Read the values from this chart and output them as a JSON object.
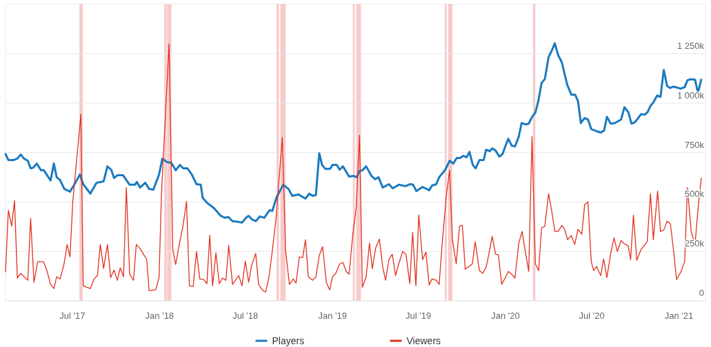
{
  "chart_data": {
    "type": "line",
    "legend": "bottom",
    "grid": "y",
    "xlim": [
      "2017-02-10",
      "2021-02-26"
    ],
    "ylim": [
      0,
      1500
    ],
    "xticks": [
      {
        "value": "2017-07-01",
        "label": "Jul '17"
      },
      {
        "value": "2018-01-01",
        "label": "Jan '18"
      },
      {
        "value": "2018-07-01",
        "label": "Jul '18"
      },
      {
        "value": "2019-01-01",
        "label": "Jan '19"
      },
      {
        "value": "2019-07-01",
        "label": "Jul '19"
      },
      {
        "value": "2020-01-01",
        "label": "Jan '20"
      },
      {
        "value": "2020-07-01",
        "label": "Jul '20"
      },
      {
        "value": "2021-01-01",
        "label": "Jan '21"
      }
    ],
    "yticks": [
      0,
      {
        "value": 250,
        "label": "250k"
      },
      {
        "value": 500,
        "label": "500k"
      },
      {
        "value": 750,
        "label": "750k"
      },
      {
        "value": 1000,
        "label": "1 000k"
      },
      {
        "value": 1250,
        "label": "1 250k"
      }
    ],
    "bands": [
      {
        "axis": "x",
        "from": "2017-07-16",
        "to": "2017-07-23",
        "color": "#f7c4c4"
      },
      {
        "axis": "x",
        "from": "2018-01-11",
        "to": "2018-01-16",
        "color": "#f7c4c4"
      },
      {
        "axis": "x",
        "from": "2018-01-17",
        "to": "2018-01-26",
        "color": "#f7c4c4"
      },
      {
        "axis": "x",
        "from": "2018-09-05",
        "to": "2018-09-10",
        "color": "#f7c4c4"
      },
      {
        "axis": "x",
        "from": "2018-09-13",
        "to": "2018-09-24",
        "color": "#f7c4c4"
      },
      {
        "axis": "x",
        "from": "2019-02-13",
        "to": "2019-02-17",
        "color": "#f7c4c4"
      },
      {
        "axis": "x",
        "from": "2019-02-20",
        "to": "2019-03-02",
        "color": "#f7c4c4"
      },
      {
        "axis": "x",
        "from": "2019-08-26",
        "to": "2019-08-30",
        "color": "#f7c4c4"
      },
      {
        "axis": "x",
        "from": "2019-09-02",
        "to": "2019-09-11",
        "color": "#f7c4c4"
      },
      {
        "axis": "x",
        "from": "2020-02-28",
        "to": "2020-03-04",
        "color": "#f7c4c4"
      }
    ],
    "series": [
      {
        "name": "Players",
        "color": "#1a7abf",
        "x": [
          "2017-02-10",
          "2017-02-16",
          "2017-02-27",
          "2017-03-07",
          "2017-03-14",
          "2017-03-21",
          "2017-03-29",
          "2017-04-04",
          "2017-04-10",
          "2017-04-17",
          "2017-04-26",
          "2017-05-02",
          "2017-05-16",
          "2017-05-23",
          "2017-05-29",
          "2017-06-05",
          "2017-06-14",
          "2017-06-26",
          "2017-07-05",
          "2017-07-17",
          "2017-07-24",
          "2017-08-08",
          "2017-08-21",
          "2017-09-05",
          "2017-09-13",
          "2017-09-21",
          "2017-09-27",
          "2017-10-04",
          "2017-10-16",
          "2017-10-30",
          "2017-11-10",
          "2017-11-14",
          "2017-11-21",
          "2017-12-02",
          "2017-12-10",
          "2017-12-19",
          "2017-12-31",
          "2018-01-07",
          "2018-01-17",
          "2018-01-26",
          "2018-02-04",
          "2018-02-13",
          "2018-02-20",
          "2018-03-01",
          "2018-03-10",
          "2018-03-20",
          "2018-03-29",
          "2018-04-02",
          "2018-04-11",
          "2018-04-26",
          "2018-05-10",
          "2018-05-19",
          "2018-05-26",
          "2018-06-04",
          "2018-06-17",
          "2018-06-24",
          "2018-07-04",
          "2018-07-08",
          "2018-07-16",
          "2018-07-23",
          "2018-08-01",
          "2018-08-10",
          "2018-08-21",
          "2018-08-27",
          "2018-09-05",
          "2018-09-19",
          "2018-09-30",
          "2018-10-08",
          "2018-10-21",
          "2018-11-05",
          "2018-11-13",
          "2018-11-20",
          "2018-11-27",
          "2018-12-04",
          "2018-12-10",
          "2018-12-17",
          "2018-12-27",
          "2019-01-01",
          "2019-01-10",
          "2019-01-16",
          "2019-01-23",
          "2019-02-05",
          "2019-02-14",
          "2019-02-21",
          "2019-02-27",
          "2019-03-05",
          "2019-03-13",
          "2019-03-24",
          "2019-04-01",
          "2019-04-08",
          "2019-04-17",
          "2019-04-30",
          "2019-05-08",
          "2019-05-21",
          "2019-06-04",
          "2019-06-14",
          "2019-06-20",
          "2019-06-27",
          "2019-07-10",
          "2019-07-24",
          "2019-07-30",
          "2019-08-08",
          "2019-08-14",
          "2019-08-27",
          "2019-09-05",
          "2019-09-13",
          "2019-09-20",
          "2019-09-27",
          "2019-10-04",
          "2019-10-11",
          "2019-10-17",
          "2019-10-24",
          "2019-10-30",
          "2019-11-07",
          "2019-11-16",
          "2019-11-21",
          "2019-11-29",
          "2019-12-04",
          "2019-12-11",
          "2019-12-19",
          "2019-12-26",
          "2019-12-31",
          "2020-01-07",
          "2020-01-14",
          "2020-01-21",
          "2020-01-29",
          "2020-02-04",
          "2020-02-13",
          "2020-02-19",
          "2020-02-27",
          "2020-03-04",
          "2020-03-10",
          "2020-03-17",
          "2020-03-24",
          "2020-04-01",
          "2020-04-08",
          "2020-04-14",
          "2020-04-21",
          "2020-04-29",
          "2020-05-10",
          "2020-05-19",
          "2020-05-27",
          "2020-06-02",
          "2020-06-08",
          "2020-06-16",
          "2020-06-23",
          "2020-06-30",
          "2020-07-11",
          "2020-07-20",
          "2020-07-27",
          "2020-08-02",
          "2020-08-10",
          "2020-08-19",
          "2020-09-01",
          "2020-09-08",
          "2020-09-16",
          "2020-09-23",
          "2020-09-30",
          "2020-10-07",
          "2020-10-13",
          "2020-10-21",
          "2020-10-27",
          "2020-11-02",
          "2020-11-08",
          "2020-11-16",
          "2020-11-23",
          "2020-11-30",
          "2020-12-07",
          "2020-12-13",
          "2020-12-20",
          "2021-01-05",
          "2021-01-13",
          "2021-01-19",
          "2021-01-26",
          "2021-02-04",
          "2021-02-10",
          "2021-02-17"
        ],
        "values": [
          743,
          712,
          712,
          719,
          740,
          719,
          708,
          670,
          674,
          694,
          660,
          660,
          608,
          694,
          625,
          611,
          566,
          552,
          587,
          639,
          590,
          542,
          597,
          604,
          680,
          663,
          621,
          635,
          635,
          587,
          587,
          601,
          573,
          597,
          566,
          562,
          639,
          719,
          701,
          698,
          660,
          687,
          670,
          670,
          639,
          590,
          587,
          521,
          496,
          469,
          430,
          420,
          424,
          403,
          399,
          396,
          424,
          430,
          410,
          403,
          427,
          420,
          458,
          455,
          524,
          587,
          566,
          531,
          538,
          517,
          542,
          531,
          535,
          746,
          687,
          667,
          667,
          687,
          687,
          663,
          680,
          628,
          632,
          625,
          656,
          660,
          680,
          632,
          615,
          625,
          573,
          590,
          569,
          587,
          580,
          590,
          587,
          555,
          576,
          559,
          583,
          590,
          625,
          663,
          708,
          694,
          722,
          722,
          733,
          726,
          753,
          687,
          670,
          712,
          712,
          764,
          757,
          771,
          760,
          729,
          743,
          778,
          819,
          785,
          781,
          830,
          899,
          892,
          896,
          934,
          951,
          1007,
          1101,
          1121,
          1233,
          1267,
          1302,
          1243,
          1205,
          1094,
          1042,
          1042,
          1010,
          899,
          924,
          917,
          868,
          858,
          851,
          861,
          930,
          896,
          899,
          917,
          979,
          955,
          896,
          903,
          924,
          944,
          941,
          955,
          986,
          1003,
          1038,
          1031,
          1167,
          1087,
          1076,
          1083,
          1073,
          1080,
          1115,
          1121,
          1118,
          1052,
          1118
        ]
      },
      {
        "name": "Viewers",
        "color": "#e0301e",
        "x": [
          "2017-02-10",
          "2017-02-16",
          "2017-02-23",
          "2017-03-01",
          "2017-03-07",
          "2017-03-14",
          "2017-03-29",
          "2017-04-04",
          "2017-04-11",
          "2017-04-19",
          "2017-05-01",
          "2017-05-08",
          "2017-05-16",
          "2017-05-23",
          "2017-05-29",
          "2017-06-05",
          "2017-06-13",
          "2017-06-20",
          "2017-06-26",
          "2017-07-02",
          "2017-07-19",
          "2017-07-24",
          "2017-08-08",
          "2017-08-16",
          "2017-08-23",
          "2017-08-29",
          "2017-09-05",
          "2017-09-13",
          "2017-09-20",
          "2017-09-27",
          "2017-10-04",
          "2017-10-10",
          "2017-10-17",
          "2017-10-23",
          "2017-10-30",
          "2017-11-07",
          "2017-11-13",
          "2017-11-21",
          "2017-11-29",
          "2017-12-05",
          "2017-12-10",
          "2017-12-24",
          "2017-12-31",
          "2018-01-05",
          "2018-01-21",
          "2018-01-29",
          "2018-02-04",
          "2018-02-13",
          "2018-02-19",
          "2018-02-27",
          "2018-03-05",
          "2018-03-13",
          "2018-03-20",
          "2018-03-27",
          "2018-04-04",
          "2018-04-11",
          "2018-04-17",
          "2018-04-23",
          "2018-04-30",
          "2018-05-07",
          "2018-05-14",
          "2018-05-21",
          "2018-05-27",
          "2018-06-04",
          "2018-06-17",
          "2018-06-24",
          "2018-07-01",
          "2018-07-08",
          "2018-07-14",
          "2018-07-23",
          "2018-07-29",
          "2018-08-07",
          "2018-08-13",
          "2018-08-20",
          "2018-08-27",
          "2018-09-04",
          "2018-09-17",
          "2018-09-24",
          "2018-10-02",
          "2018-10-10",
          "2018-10-16",
          "2018-10-23",
          "2018-10-30",
          "2018-11-05",
          "2018-11-11",
          "2018-11-20",
          "2018-11-27",
          "2018-12-04",
          "2018-12-11",
          "2018-12-19",
          "2018-12-26",
          "2019-01-01",
          "2019-01-08",
          "2019-01-16",
          "2019-01-23",
          "2019-01-30",
          "2019-02-05",
          "2019-02-13",
          "2019-02-20",
          "2019-02-27",
          "2019-03-05",
          "2019-03-13",
          "2019-03-20",
          "2019-03-26",
          "2019-04-02",
          "2019-04-10",
          "2019-04-17",
          "2019-04-23",
          "2019-04-30",
          "2019-05-07",
          "2019-05-14",
          "2019-05-20",
          "2019-05-29",
          "2019-06-05",
          "2019-06-13",
          "2019-06-19",
          "2019-06-26",
          "2019-07-02",
          "2019-07-10",
          "2019-07-17",
          "2019-07-24",
          "2019-07-30",
          "2019-08-08",
          "2019-08-14",
          "2019-08-21",
          "2019-08-29",
          "2019-09-05",
          "2019-09-11",
          "2019-09-19",
          "2019-09-26",
          "2019-10-02",
          "2019-10-08",
          "2019-10-16",
          "2019-10-23",
          "2019-10-29",
          "2019-11-07",
          "2019-11-14",
          "2019-11-21",
          "2019-11-26",
          "2019-12-04",
          "2019-12-11",
          "2019-12-17",
          "2019-12-24",
          "2019-12-31",
          "2020-01-07",
          "2020-01-14",
          "2020-01-21",
          "2020-01-29",
          "2020-02-05",
          "2020-02-13",
          "2020-02-19",
          "2020-02-26",
          "2020-03-04",
          "2020-03-11",
          "2020-03-17",
          "2020-03-24",
          "2020-04-01",
          "2020-04-08",
          "2020-04-14",
          "2020-04-21",
          "2020-04-29",
          "2020-05-05",
          "2020-05-11",
          "2020-05-19",
          "2020-05-26",
          "2020-06-02",
          "2020-06-10",
          "2020-06-16",
          "2020-06-23",
          "2020-06-30",
          "2020-07-05",
          "2020-07-11",
          "2020-07-20",
          "2020-07-26",
          "2020-08-02",
          "2020-08-10",
          "2020-08-17",
          "2020-08-24",
          "2020-09-01",
          "2020-09-08",
          "2020-09-16",
          "2020-09-21",
          "2020-09-27",
          "2020-10-04",
          "2020-10-13",
          "2020-10-19",
          "2020-10-26",
          "2020-11-02",
          "2020-11-08",
          "2020-11-17",
          "2020-11-23",
          "2020-11-30",
          "2020-12-07",
          "2020-12-14",
          "2020-12-20",
          "2020-12-27",
          "2021-01-05",
          "2021-01-13",
          "2021-01-19",
          "2021-01-27",
          "2021-02-04",
          "2021-02-10",
          "2021-02-17"
        ],
        "values": [
          146,
          458,
          378,
          507,
          115,
          139,
          104,
          417,
          94,
          198,
          198,
          156,
          83,
          62,
          122,
          111,
          181,
          285,
          222,
          503,
          944,
          76,
          62,
          111,
          128,
          285,
          163,
          285,
          118,
          156,
          104,
          167,
          122,
          573,
          135,
          104,
          285,
          264,
          233,
          208,
          52,
          56,
          118,
          538,
          1299,
          257,
          184,
          302,
          372,
          503,
          76,
          73,
          250,
          111,
          108,
          87,
          333,
          76,
          243,
          87,
          115,
          104,
          281,
          83,
          128,
          76,
          201,
          94,
          177,
          240,
          83,
          52,
          45,
          122,
          253,
          420,
          826,
          257,
          83,
          111,
          90,
          222,
          219,
          309,
          122,
          104,
          122,
          229,
          274,
          94,
          56,
          122,
          139,
          187,
          194,
          149,
          135,
          340,
          472,
          837,
          69,
          122,
          292,
          163,
          267,
          312,
          170,
          104,
          208,
          236,
          128,
          181,
          250,
          236,
          87,
          347,
          76,
          434,
          208,
          246,
          80,
          111,
          104,
          83,
          306,
          528,
          660,
          312,
          187,
          378,
          382,
          160,
          174,
          187,
          299,
          153,
          139,
          170,
          226,
          326,
          236,
          233,
          83,
          115,
          149,
          135,
          115,
          292,
          351,
          233,
          149,
          830,
          187,
          153,
          368,
          378,
          542,
          448,
          351,
          351,
          382,
          361,
          309,
          330,
          285,
          361,
          337,
          486,
          500,
          198,
          153,
          174,
          128,
          212,
          118,
          240,
          319,
          250,
          306,
          288,
          278,
          208,
          434,
          205,
          260,
          278,
          299,
          542,
          309,
          555,
          351,
          358,
          403,
          389,
          267,
          108,
          146,
          198,
          573,
          347,
          288,
          458,
          621
        ]
      }
    ]
  }
}
